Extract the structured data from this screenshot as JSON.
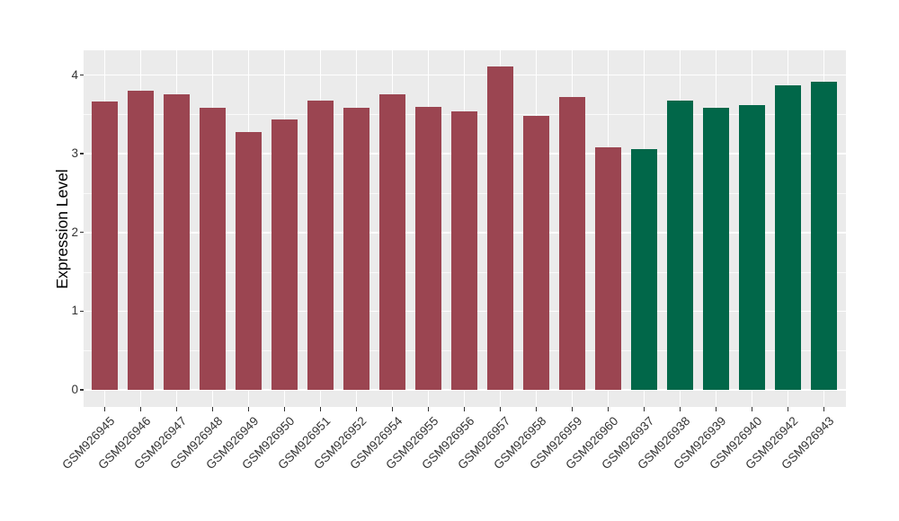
{
  "chart_data": {
    "type": "bar",
    "title": "",
    "xlabel": "",
    "ylabel": "Expression Level",
    "categories": [
      "GSM926945",
      "GSM926946",
      "GSM926947",
      "GSM926948",
      "GSM926949",
      "GSM926950",
      "GSM926951",
      "GSM926952",
      "GSM926954",
      "GSM926955",
      "GSM926956",
      "GSM926957",
      "GSM926958",
      "GSM926959",
      "GSM926960",
      "GSM926937",
      "GSM926938",
      "GSM926939",
      "GSM926940",
      "GSM926942",
      "GSM926943"
    ],
    "values": [
      3.66,
      3.8,
      3.76,
      3.58,
      3.28,
      3.44,
      3.68,
      3.58,
      3.76,
      3.6,
      3.54,
      4.11,
      3.48,
      3.72,
      3.08,
      3.06,
      3.68,
      3.59,
      3.62,
      3.87,
      3.92
    ],
    "bar_colors": [
      "#9B4551",
      "#9B4551",
      "#9B4551",
      "#9B4551",
      "#9B4551",
      "#9B4551",
      "#9B4551",
      "#9B4551",
      "#9B4551",
      "#9B4551",
      "#9B4551",
      "#9B4551",
      "#9B4551",
      "#9B4551",
      "#9B4551",
      "#016749",
      "#016749",
      "#016749",
      "#016749",
      "#016749",
      "#016749"
    ],
    "color_groups": {
      "red_bars_hex": "#9B4551",
      "green_bars_hex": "#016749",
      "red_count": 15,
      "green_count": 6
    },
    "y_ticks": [
      0,
      1,
      2,
      3,
      4
    ],
    "y_tick_labels": [
      "0",
      "1",
      "2",
      "3",
      "4"
    ],
    "y_minor_ticks": [
      0.5,
      1.5,
      2.5,
      3.5
    ],
    "ylim": [
      -0.21,
      4.33
    ],
    "grid": "major and minor horizontal + major vertical, white on grey panel",
    "legend": "none",
    "panel_background": "#EBEBEB",
    "gridline_color": "#FFFFFF",
    "axis_text_color": "#333333",
    "tick_mark_color": "#333333"
  }
}
